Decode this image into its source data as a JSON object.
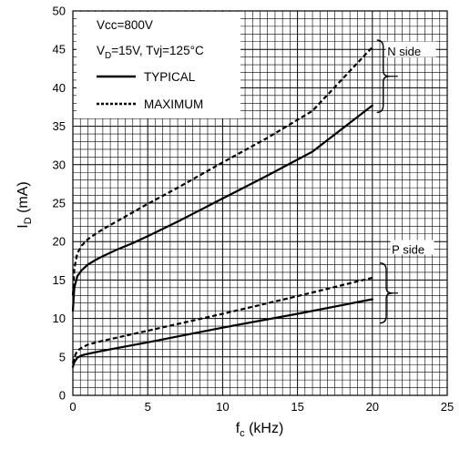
{
  "chart_data": {
    "type": "line",
    "xlabel": {
      "main": "f",
      "sub": "c",
      "unit": " (kHz)"
    },
    "ylabel": {
      "main": "I",
      "sub": "D",
      "unit": " (mA)"
    },
    "xlim": [
      0,
      25
    ],
    "ylim": [
      0,
      50
    ],
    "x_ticks": [
      0,
      5,
      10,
      15,
      20,
      25
    ],
    "y_ticks": [
      0,
      5,
      10,
      15,
      20,
      25,
      30,
      35,
      40,
      45,
      50
    ],
    "grid": true,
    "legend_position": "top-left",
    "legend": {
      "line1": "Vcc=800V",
      "line2": {
        "a": "V",
        "sub": "D",
        "b": "=15V, Tvj=125°C"
      },
      "typical_label": "TYPICAL",
      "maximum_label": "MAXIMUM"
    },
    "annotations": {
      "n_side": "N side",
      "p_side": "P side"
    },
    "series": [
      {
        "name": "TYPICAL",
        "group": "N side",
        "style": "solid",
        "x": [
          0,
          0.1,
          0.3,
          0.6,
          1,
          1.5,
          2,
          3,
          4,
          5,
          7,
          10,
          13,
          16,
          20
        ],
        "y": [
          11,
          14,
          15.5,
          16.3,
          17,
          17.6,
          18.1,
          19,
          19.8,
          20.7,
          22.6,
          25.6,
          28.6,
          31.7,
          37.7
        ]
      },
      {
        "name": "MAXIMUM",
        "group": "N side",
        "style": "dashed",
        "x": [
          0,
          0.1,
          0.3,
          0.6,
          1,
          1.5,
          2,
          3,
          4,
          5,
          7,
          10,
          13,
          16,
          20
        ],
        "y": [
          13,
          16.5,
          18.5,
          19.5,
          20.3,
          21,
          21.6,
          22.7,
          23.8,
          24.9,
          27,
          30.3,
          33.5,
          37,
          45.3
        ]
      },
      {
        "name": "TYPICAL",
        "group": "P side",
        "style": "solid",
        "x": [
          0,
          0.1,
          0.3,
          0.6,
          1,
          2,
          5,
          10,
          15,
          20
        ],
        "y": [
          3.7,
          4.3,
          4.9,
          5.2,
          5.4,
          5.8,
          6.9,
          8.8,
          10.6,
          12.5
        ]
      },
      {
        "name": "MAXIMUM",
        "group": "P side",
        "style": "dashed",
        "x": [
          0,
          0.1,
          0.3,
          0.6,
          1,
          2,
          5,
          10,
          15,
          20
        ],
        "y": [
          4.2,
          5,
          5.8,
          6.2,
          6.6,
          7.1,
          8.4,
          10.6,
          12.9,
          15.3
        ]
      }
    ]
  }
}
